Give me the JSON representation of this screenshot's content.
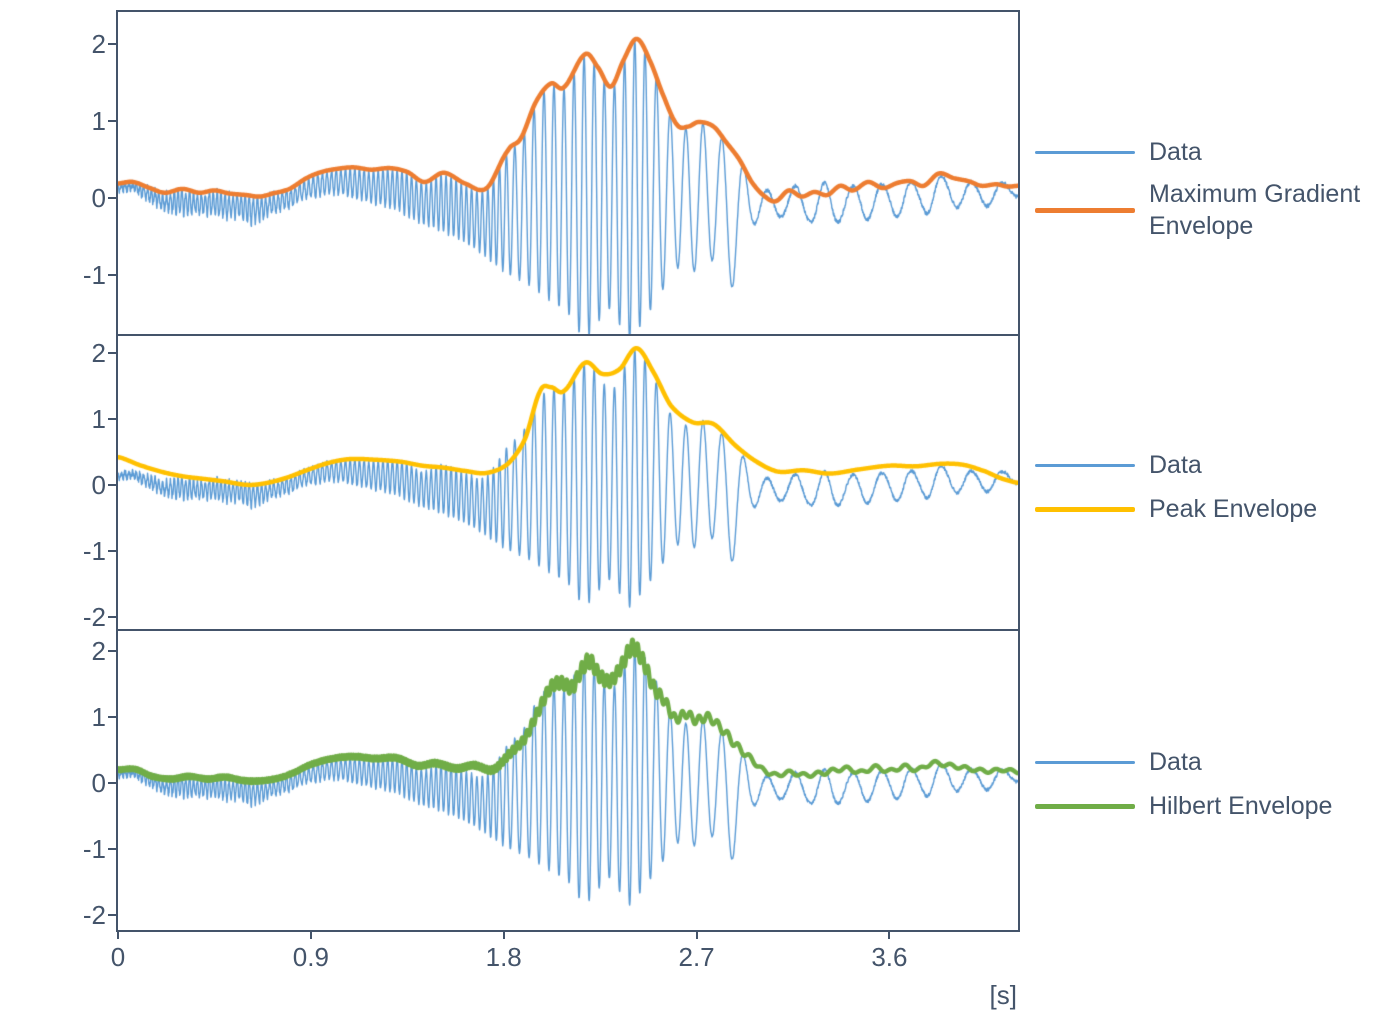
{
  "figure": {
    "background": "#FFFFFF",
    "axis_color": "#44546A",
    "text_color": "#44546A",
    "x_axis_unit_label": "[s]",
    "x_tick_values": [
      0,
      0.9,
      1.8,
      2.7,
      3.6
    ],
    "x_tick_labels": [
      "0",
      "0.9",
      "1.8",
      "2.7",
      "3.6"
    ]
  },
  "chart_data": [
    {
      "type": "line",
      "x_range": [
        0,
        4.2
      ],
      "ylim": [
        -1.78,
        2.42
      ],
      "y_ticks": [
        2,
        1,
        0,
        -1
      ],
      "y_tick_labels": [
        "2",
        "1",
        "0",
        "-1"
      ],
      "grid": false,
      "legend_position": "right",
      "series": [
        {
          "name": "Data",
          "color": "#5B9BD5",
          "role": "signal"
        },
        {
          "name": "Maximum Gradient Envelope",
          "color": "#ED7D31",
          "role": "envelope",
          "style": "smooth",
          "pts": [
            [
              0,
              0.19
            ],
            [
              0.07,
              0.21
            ],
            [
              0.15,
              0.13
            ],
            [
              0.22,
              0.07
            ],
            [
              0.3,
              0.12
            ],
            [
              0.38,
              0.07
            ],
            [
              0.45,
              0.1
            ],
            [
              0.52,
              0.06
            ],
            [
              0.6,
              0.04
            ],
            [
              0.66,
              0.02
            ],
            [
              0.72,
              0.06
            ],
            [
              0.8,
              0.12
            ],
            [
              0.88,
              0.26
            ],
            [
              0.95,
              0.34
            ],
            [
              1.02,
              0.38
            ],
            [
              1.1,
              0.4
            ],
            [
              1.18,
              0.37
            ],
            [
              1.27,
              0.39
            ],
            [
              1.35,
              0.34
            ],
            [
              1.43,
              0.21
            ],
            [
              1.52,
              0.33
            ],
            [
              1.62,
              0.19
            ],
            [
              1.72,
              0.13
            ],
            [
              1.82,
              0.62
            ],
            [
              1.88,
              0.78
            ],
            [
              1.95,
              1.25
            ],
            [
              2.02,
              1.49
            ],
            [
              2.08,
              1.44
            ],
            [
              2.18,
              1.87
            ],
            [
              2.24,
              1.7
            ],
            [
              2.3,
              1.45
            ],
            [
              2.36,
              1.8
            ],
            [
              2.42,
              2.07
            ],
            [
              2.48,
              1.8
            ],
            [
              2.55,
              1.3
            ],
            [
              2.61,
              0.95
            ],
            [
              2.66,
              0.93
            ],
            [
              2.71,
              0.99
            ],
            [
              2.78,
              0.93
            ],
            [
              2.84,
              0.72
            ],
            [
              2.9,
              0.5
            ],
            [
              2.96,
              0.2
            ],
            [
              3.02,
              0.02
            ],
            [
              3.07,
              -0.04
            ],
            [
              3.13,
              0.1
            ],
            [
              3.19,
              0.02
            ],
            [
              3.25,
              0.08
            ],
            [
              3.31,
              0.04
            ],
            [
              3.37,
              0.16
            ],
            [
              3.43,
              0.1
            ],
            [
              3.5,
              0.21
            ],
            [
              3.57,
              0.13
            ],
            [
              3.64,
              0.2
            ],
            [
              3.7,
              0.22
            ],
            [
              3.76,
              0.16
            ],
            [
              3.83,
              0.32
            ],
            [
              3.9,
              0.26
            ],
            [
              3.97,
              0.22
            ],
            [
              4.03,
              0.16
            ],
            [
              4.1,
              0.18
            ],
            [
              4.15,
              0.15
            ],
            [
              4.2,
              0.16
            ]
          ]
        }
      ]
    },
    {
      "type": "line",
      "x_range": [
        0,
        4.2
      ],
      "ylim": [
        -2.2,
        2.27
      ],
      "y_ticks": [
        2,
        1,
        0,
        -1,
        -2
      ],
      "y_tick_labels": [
        "2",
        "1",
        "0",
        "-1",
        "-2"
      ],
      "grid": false,
      "legend_position": "right",
      "series": [
        {
          "name": "Data",
          "color": "#5B9BD5",
          "role": "signal"
        },
        {
          "name": "Peak Envelope",
          "color": "#FFC000",
          "role": "envelope",
          "style": "smooth",
          "pts": [
            [
              0,
              0.42
            ],
            [
              0.1,
              0.3
            ],
            [
              0.2,
              0.2
            ],
            [
              0.3,
              0.13
            ],
            [
              0.4,
              0.09
            ],
            [
              0.5,
              0.05
            ],
            [
              0.6,
              0.0
            ],
            [
              0.68,
              0.02
            ],
            [
              0.78,
              0.1
            ],
            [
              0.88,
              0.22
            ],
            [
              0.98,
              0.33
            ],
            [
              1.08,
              0.39
            ],
            [
              1.2,
              0.38
            ],
            [
              1.32,
              0.35
            ],
            [
              1.42,
              0.29
            ],
            [
              1.52,
              0.26
            ],
            [
              1.62,
              0.21
            ],
            [
              1.72,
              0.18
            ],
            [
              1.82,
              0.32
            ],
            [
              1.9,
              0.7
            ],
            [
              1.97,
              1.42
            ],
            [
              2.02,
              1.48
            ],
            [
              2.08,
              1.42
            ],
            [
              2.18,
              1.85
            ],
            [
              2.26,
              1.68
            ],
            [
              2.34,
              1.75
            ],
            [
              2.42,
              2.07
            ],
            [
              2.5,
              1.7
            ],
            [
              2.58,
              1.2
            ],
            [
              2.68,
              0.95
            ],
            [
              2.78,
              0.92
            ],
            [
              2.88,
              0.6
            ],
            [
              2.98,
              0.35
            ],
            [
              3.08,
              0.2
            ],
            [
              3.2,
              0.22
            ],
            [
              3.32,
              0.17
            ],
            [
              3.45,
              0.23
            ],
            [
              3.6,
              0.29
            ],
            [
              3.72,
              0.28
            ],
            [
              3.85,
              0.32
            ],
            [
              3.95,
              0.3
            ],
            [
              4.05,
              0.2
            ],
            [
              4.12,
              0.1
            ],
            [
              4.2,
              0.03
            ]
          ]
        }
      ]
    },
    {
      "type": "line",
      "x_range": [
        0,
        4.2
      ],
      "ylim": [
        -2.23,
        2.32
      ],
      "y_ticks": [
        2,
        1,
        0,
        -1,
        -2
      ],
      "y_tick_labels": [
        "2",
        "1",
        "0",
        "-1",
        "-2"
      ],
      "grid": false,
      "legend_position": "right",
      "series": [
        {
          "name": "Data",
          "color": "#5B9BD5",
          "role": "signal"
        },
        {
          "name": "Hilbert Envelope",
          "color": "#70AD47",
          "role": "envelope",
          "style": "rippled",
          "pts": [
            [
              0,
              0.2
            ],
            [
              0.08,
              0.21
            ],
            [
              0.16,
              0.1
            ],
            [
              0.25,
              0.06
            ],
            [
              0.33,
              0.1
            ],
            [
              0.42,
              0.06
            ],
            [
              0.5,
              0.09
            ],
            [
              0.58,
              0.04
            ],
            [
              0.65,
              0.03
            ],
            [
              0.73,
              0.06
            ],
            [
              0.8,
              0.13
            ],
            [
              0.9,
              0.28
            ],
            [
              1.0,
              0.37
            ],
            [
              1.1,
              0.4
            ],
            [
              1.2,
              0.37
            ],
            [
              1.3,
              0.38
            ],
            [
              1.4,
              0.26
            ],
            [
              1.48,
              0.3
            ],
            [
              1.58,
              0.22
            ],
            [
              1.66,
              0.27
            ],
            [
              1.75,
              0.2
            ],
            [
              1.83,
              0.45
            ],
            [
              1.9,
              0.68
            ],
            [
              1.96,
              1.08
            ],
            [
              2.02,
              1.45
            ],
            [
              2.07,
              1.52
            ],
            [
              2.12,
              1.45
            ],
            [
              2.16,
              1.7
            ],
            [
              2.2,
              1.85
            ],
            [
              2.25,
              1.62
            ],
            [
              2.3,
              1.55
            ],
            [
              2.35,
              1.78
            ],
            [
              2.4,
              2.06
            ],
            [
              2.45,
              1.85
            ],
            [
              2.5,
              1.45
            ],
            [
              2.55,
              1.25
            ],
            [
              2.6,
              0.98
            ],
            [
              2.65,
              1.05
            ],
            [
              2.7,
              0.95
            ],
            [
              2.75,
              1.0
            ],
            [
              2.8,
              0.88
            ],
            [
              2.85,
              0.7
            ],
            [
              2.9,
              0.52
            ],
            [
              2.95,
              0.38
            ],
            [
              3.0,
              0.22
            ],
            [
              3.07,
              0.12
            ],
            [
              3.13,
              0.16
            ],
            [
              3.2,
              0.12
            ],
            [
              3.27,
              0.14
            ],
            [
              3.33,
              0.18
            ],
            [
              3.4,
              0.22
            ],
            [
              3.47,
              0.16
            ],
            [
              3.53,
              0.24
            ],
            [
              3.6,
              0.18
            ],
            [
              3.67,
              0.25
            ],
            [
              3.73,
              0.2
            ],
            [
              3.8,
              0.3
            ],
            [
              3.87,
              0.27
            ],
            [
              3.93,
              0.24
            ],
            [
              4.0,
              0.2
            ],
            [
              4.07,
              0.18
            ],
            [
              4.13,
              0.2
            ],
            [
              4.2,
              0.17
            ]
          ]
        }
      ]
    }
  ],
  "signal": {
    "x_unit": "s",
    "upper_pts": [
      [
        0,
        0.18
      ],
      [
        0.07,
        0.2
      ],
      [
        0.15,
        0.12
      ],
      [
        0.22,
        0.06
      ],
      [
        0.3,
        0.11
      ],
      [
        0.38,
        0.06
      ],
      [
        0.45,
        0.09
      ],
      [
        0.52,
        0.05
      ],
      [
        0.6,
        0.03
      ],
      [
        0.66,
        0.01
      ],
      [
        0.72,
        0.05
      ],
      [
        0.8,
        0.11
      ],
      [
        0.88,
        0.25
      ],
      [
        0.95,
        0.33
      ],
      [
        1.02,
        0.37
      ],
      [
        1.1,
        0.39
      ],
      [
        1.18,
        0.36
      ],
      [
        1.27,
        0.38
      ],
      [
        1.35,
        0.33
      ],
      [
        1.43,
        0.2
      ],
      [
        1.52,
        0.32
      ],
      [
        1.62,
        0.18
      ],
      [
        1.72,
        0.12
      ],
      [
        1.82,
        0.6
      ],
      [
        1.88,
        0.76
      ],
      [
        1.95,
        1.22
      ],
      [
        2.02,
        1.47
      ],
      [
        2.08,
        1.42
      ],
      [
        2.18,
        1.85
      ],
      [
        2.24,
        1.68
      ],
      [
        2.3,
        1.43
      ],
      [
        2.36,
        1.78
      ],
      [
        2.42,
        2.05
      ],
      [
        2.48,
        1.78
      ],
      [
        2.55,
        1.28
      ],
      [
        2.61,
        0.93
      ],
      [
        2.66,
        0.91
      ],
      [
        2.71,
        0.97
      ],
      [
        2.78,
        0.91
      ],
      [
        2.84,
        0.7
      ],
      [
        2.9,
        0.48
      ],
      [
        2.95,
        0.35
      ],
      [
        3.02,
        0.12
      ],
      [
        3.08,
        0.1
      ],
      [
        3.15,
        0.16
      ],
      [
        3.22,
        0.12
      ],
      [
        3.3,
        0.2
      ],
      [
        3.37,
        0.18
      ],
      [
        3.45,
        0.15
      ],
      [
        3.52,
        0.22
      ],
      [
        3.6,
        0.16
      ],
      [
        3.67,
        0.24
      ],
      [
        3.74,
        0.18
      ],
      [
        3.8,
        0.3
      ],
      [
        3.87,
        0.26
      ],
      [
        3.95,
        0.24
      ],
      [
        4.02,
        0.18
      ],
      [
        4.1,
        0.2
      ],
      [
        4.2,
        0.2
      ]
    ],
    "lower_pts": [
      [
        0,
        0.08
      ],
      [
        0.07,
        0.1
      ],
      [
        0.15,
        -0.05
      ],
      [
        0.22,
        -0.15
      ],
      [
        0.3,
        -0.22
      ],
      [
        0.4,
        -0.2
      ],
      [
        0.5,
        -0.26
      ],
      [
        0.57,
        -0.25
      ],
      [
        0.63,
        -0.34
      ],
      [
        0.7,
        -0.22
      ],
      [
        0.78,
        -0.14
      ],
      [
        0.85,
        -0.05
      ],
      [
        0.93,
        0.02
      ],
      [
        1.0,
        0.05
      ],
      [
        1.1,
        0.0
      ],
      [
        1.2,
        -0.07
      ],
      [
        1.3,
        -0.15
      ],
      [
        1.4,
        -0.3
      ],
      [
        1.5,
        -0.42
      ],
      [
        1.6,
        -0.55
      ],
      [
        1.7,
        -0.72
      ],
      [
        1.8,
        -0.95
      ],
      [
        1.9,
        -1.1
      ],
      [
        2.0,
        -1.3
      ],
      [
        2.1,
        -1.5
      ],
      [
        2.18,
        -1.8
      ],
      [
        2.3,
        -1.45
      ],
      [
        2.38,
        -1.85
      ],
      [
        2.45,
        -1.6
      ],
      [
        2.52,
        -1.3
      ],
      [
        2.6,
        -0.92
      ],
      [
        2.7,
        -0.95
      ],
      [
        2.8,
        -0.8
      ],
      [
        2.87,
        -1.15
      ],
      [
        2.95,
        -0.4
      ],
      [
        3.05,
        -0.3
      ],
      [
        3.13,
        -0.22
      ],
      [
        3.22,
        -0.3
      ],
      [
        3.3,
        -0.42
      ],
      [
        3.4,
        -0.25
      ],
      [
        3.48,
        -0.3
      ],
      [
        3.55,
        -0.2
      ],
      [
        3.63,
        -0.25
      ],
      [
        3.7,
        -0.15
      ],
      [
        3.78,
        -0.2
      ],
      [
        3.85,
        -0.1
      ],
      [
        3.93,
        -0.12
      ],
      [
        4.0,
        -0.08
      ],
      [
        4.07,
        -0.1
      ],
      [
        4.15,
        0.0
      ],
      [
        4.2,
        0.02
      ]
    ],
    "freq_hz_pts": [
      [
        0,
        58
      ],
      [
        0.7,
        52
      ],
      [
        0.9,
        47
      ],
      [
        1.3,
        45
      ],
      [
        1.6,
        42
      ],
      [
        1.75,
        38
      ],
      [
        1.85,
        23
      ],
      [
        1.95,
        21.5
      ],
      [
        2.45,
        21
      ],
      [
        2.55,
        15
      ],
      [
        2.65,
        13
      ],
      [
        2.8,
        11
      ],
      [
        2.95,
        9
      ],
      [
        3.1,
        7.5
      ],
      [
        4.2,
        7
      ]
    ],
    "noise_pts": [
      [
        0,
        0.05
      ],
      [
        0.8,
        0.045
      ],
      [
        0.95,
        0.028
      ],
      [
        1.3,
        0.025
      ],
      [
        1.75,
        0.02
      ],
      [
        1.85,
        0.012
      ],
      [
        2.9,
        0.015
      ],
      [
        3.05,
        0.025
      ],
      [
        4.2,
        0.025
      ]
    ]
  }
}
